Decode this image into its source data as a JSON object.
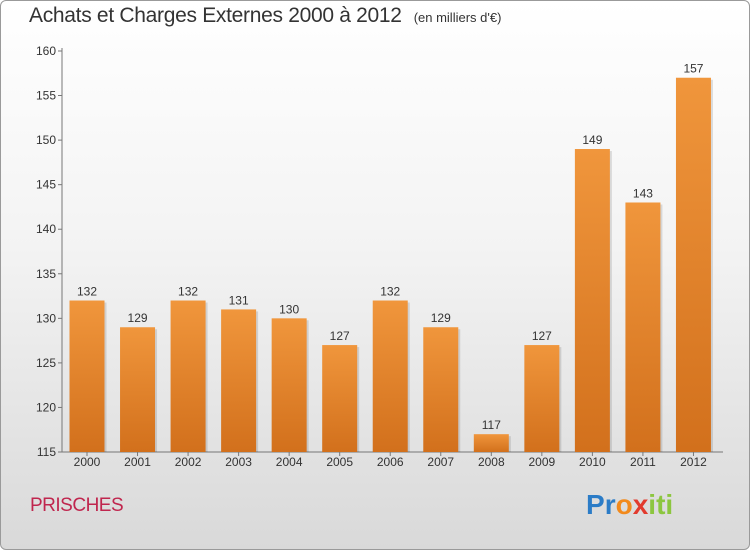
{
  "chart_data": {
    "type": "bar",
    "title": "Achats et Charges Externes 2000 à 2012",
    "subtitle": "(en milliers d'€)",
    "categories": [
      "2000",
      "2001",
      "2002",
      "2003",
      "2004",
      "2005",
      "2006",
      "2007",
      "2008",
      "2009",
      "2010",
      "2011",
      "2012"
    ],
    "values": [
      132,
      129,
      132,
      131,
      130,
      127,
      132,
      129,
      117,
      127,
      149,
      143,
      157
    ],
    "ylim": [
      115,
      160
    ],
    "yticks": [
      115,
      120,
      125,
      130,
      135,
      140,
      145,
      150,
      155,
      160
    ],
    "grid": false,
    "bar_color": "#f0963c",
    "bar_color_dark": "#d2701c"
  },
  "commune": "PRISCHES",
  "logo": {
    "letters": [
      "P",
      "r",
      "o",
      "x",
      "i",
      "t",
      "i"
    ],
    "colors": [
      "#2b7cc7",
      "#2b7cc7",
      "#f28a1c",
      "#e23b2e",
      "#8cc63f",
      "#8cc63f",
      "#8cc63f"
    ]
  }
}
